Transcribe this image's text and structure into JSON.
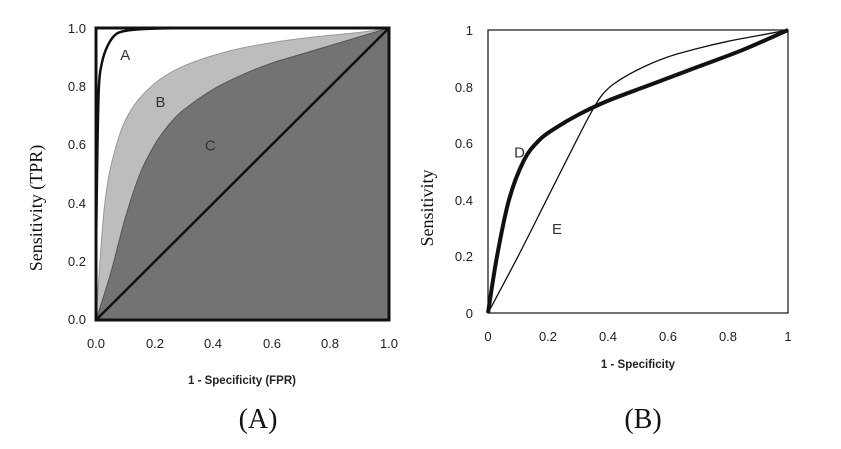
{
  "chart_data": [
    {
      "type": "area",
      "caption": "(A)",
      "xlabel": "1 - Specificity (FPR)",
      "ylabel": "Sensitivity (TPR)",
      "xlim": [
        0,
        1
      ],
      "ylim": [
        0,
        1
      ],
      "xticks": [
        "0.0",
        "0.2",
        "0.4",
        "0.6",
        "0.8",
        "1.0"
      ],
      "yticks": [
        "0.0",
        "0.2",
        "0.4",
        "0.6",
        "0.8",
        "1.0"
      ],
      "fill_colors": {
        "B": "#bdbdbd",
        "C": "#737373"
      },
      "series": [
        {
          "name": "A",
          "x": [
            0,
            0.005,
            0.01,
            0.02,
            0.04,
            0.07,
            0.12,
            0.2,
            0.35,
            0.6,
            1.0
          ],
          "y": [
            0.24,
            0.6,
            0.8,
            0.88,
            0.94,
            0.98,
            0.993,
            0.998,
            1.0,
            1.0,
            1.0
          ],
          "label_at": [
            0.1,
            0.89
          ]
        },
        {
          "name": "B",
          "x": [
            0,
            0.03,
            0.07,
            0.12,
            0.2,
            0.3,
            0.45,
            0.6,
            0.75,
            0.9,
            1.0
          ],
          "y": [
            0,
            0.4,
            0.6,
            0.72,
            0.81,
            0.87,
            0.92,
            0.95,
            0.97,
            0.985,
            1.0
          ],
          "label_at": [
            0.22,
            0.73
          ]
        },
        {
          "name": "C",
          "x": [
            0,
            0.05,
            0.1,
            0.15,
            0.2,
            0.25,
            0.3,
            0.4,
            0.5,
            0.6,
            0.7,
            0.8,
            0.9,
            1.0
          ],
          "y": [
            0,
            0.16,
            0.35,
            0.5,
            0.6,
            0.67,
            0.72,
            0.79,
            0.84,
            0.88,
            0.91,
            0.94,
            0.97,
            1.0
          ],
          "label_at": [
            0.39,
            0.58
          ]
        },
        {
          "name": "diagonal",
          "x": [
            0,
            1
          ],
          "y": [
            0,
            1
          ]
        }
      ]
    },
    {
      "type": "line",
      "caption": "(B)",
      "xlabel": "1 - Specificity",
      "ylabel": "Sensitivity",
      "xlim": [
        0,
        1
      ],
      "ylim": [
        0,
        1
      ],
      "xticks": [
        "0",
        "0.2",
        "0.4",
        "0.6",
        "0.8",
        "1"
      ],
      "yticks": [
        "0",
        "0.2",
        "0.4",
        "0.6",
        "0.8",
        "1"
      ],
      "series": [
        {
          "name": "D",
          "x": [
            0,
            0.03,
            0.07,
            0.12,
            0.17,
            0.22,
            0.3,
            0.4,
            0.55,
            0.7,
            0.85,
            1.0
          ],
          "y": [
            0,
            0.2,
            0.4,
            0.54,
            0.61,
            0.65,
            0.7,
            0.75,
            0.81,
            0.87,
            0.93,
            1.0
          ],
          "label_at": [
            0.105,
            0.55
          ]
        },
        {
          "name": "E",
          "x": [
            0,
            0.1,
            0.2,
            0.3,
            0.35,
            0.38,
            0.42,
            0.5,
            0.6,
            0.7,
            0.8,
            0.9,
            1.0
          ],
          "y": [
            0,
            0.2,
            0.41,
            0.62,
            0.72,
            0.77,
            0.81,
            0.86,
            0.905,
            0.935,
            0.96,
            0.98,
            1.0
          ],
          "label_at": [
            0.23,
            0.28
          ]
        }
      ]
    }
  ]
}
